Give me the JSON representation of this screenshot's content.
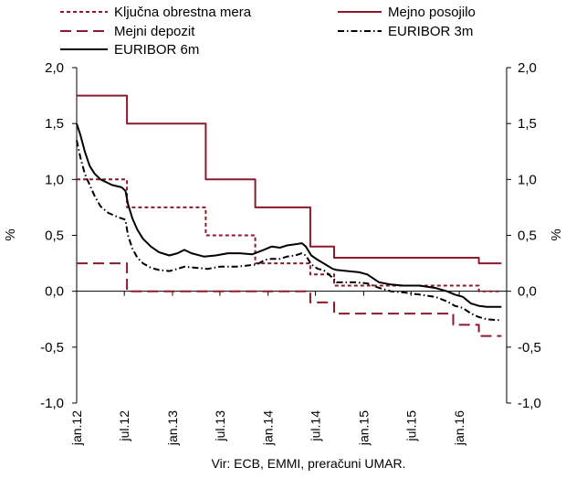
{
  "source_note": "Vir: ECB, EMMI, preračuni UMAR.",
  "chart_data": {
    "type": "line",
    "title": "",
    "ylabel_left": "%",
    "ylabel_right": "%",
    "ylim": [
      -1.0,
      2.0
    ],
    "yticks": [
      -1.0,
      -0.5,
      0.0,
      0.5,
      1.0,
      1.5,
      2.0
    ],
    "ytick_labels": [
      "-1,0",
      "-0,5",
      "0,0",
      "0,5",
      "1,0",
      "1,5",
      "2,0"
    ],
    "xlim": [
      "2012-01-01",
      "2016-06-30"
    ],
    "xticks": [
      {
        "label": "jan.12",
        "date": "2012-01-01"
      },
      {
        "label": "jul.12",
        "date": "2012-07-01"
      },
      {
        "label": "jan.13",
        "date": "2013-01-01"
      },
      {
        "label": "jul.13",
        "date": "2013-07-01"
      },
      {
        "label": "jan.14",
        "date": "2014-01-01"
      },
      {
        "label": "jul.14",
        "date": "2014-07-01"
      },
      {
        "label": "jan.15",
        "date": "2015-01-01"
      },
      {
        "label": "jul.15",
        "date": "2015-07-01"
      },
      {
        "label": "jan.16",
        "date": "2016-01-01"
      }
    ],
    "grid": false,
    "legend_position": "top",
    "series": [
      {
        "name": "Ključna obrestna mera",
        "color": "#8b1a2b",
        "dash": "4,3",
        "step": true,
        "points": [
          [
            "2012-01-01",
            1.0
          ],
          [
            "2012-07-11",
            0.75
          ],
          [
            "2013-05-08",
            0.5
          ],
          [
            "2013-11-13",
            0.25
          ],
          [
            "2014-06-11",
            0.15
          ],
          [
            "2014-09-10",
            0.05
          ],
          [
            "2016-03-16",
            0.0
          ],
          [
            "2016-06-10",
            0.0
          ]
        ]
      },
      {
        "name": "Mejno posojilo",
        "color": "#8b1a2b",
        "dash": "",
        "step": true,
        "points": [
          [
            "2012-01-01",
            1.75
          ],
          [
            "2012-07-11",
            1.5
          ],
          [
            "2013-05-08",
            1.0
          ],
          [
            "2013-11-13",
            0.75
          ],
          [
            "2014-06-11",
            0.4
          ],
          [
            "2014-09-10",
            0.3
          ],
          [
            "2016-03-16",
            0.25
          ],
          [
            "2016-06-10",
            0.25
          ]
        ]
      },
      {
        "name": "Mejni depozit",
        "color": "#8b1a2b",
        "dash": "12,6",
        "step": true,
        "points": [
          [
            "2012-01-01",
            0.25
          ],
          [
            "2012-07-11",
            0.0
          ],
          [
            "2014-06-11",
            -0.1
          ],
          [
            "2014-09-10",
            -0.2
          ],
          [
            "2015-12-09",
            -0.3
          ],
          [
            "2016-03-16",
            -0.4
          ],
          [
            "2016-06-10",
            -0.4
          ]
        ]
      },
      {
        "name": "EURIBOR 3m",
        "color": "#000000",
        "dash": "7,3,1.5,3",
        "step": false,
        "points": [
          [
            "2012-01-01",
            1.35
          ],
          [
            "2012-01-15",
            1.2
          ],
          [
            "2012-02-01",
            1.05
          ],
          [
            "2012-02-20",
            0.95
          ],
          [
            "2012-03-10",
            0.85
          ],
          [
            "2012-04-01",
            0.76
          ],
          [
            "2012-05-01",
            0.7
          ],
          [
            "2012-06-10",
            0.66
          ],
          [
            "2012-07-05",
            0.64
          ],
          [
            "2012-07-15",
            0.5
          ],
          [
            "2012-08-01",
            0.38
          ],
          [
            "2012-08-20",
            0.3
          ],
          [
            "2012-09-10",
            0.25
          ],
          [
            "2012-10-10",
            0.21
          ],
          [
            "2012-11-10",
            0.19
          ],
          [
            "2012-12-20",
            0.18
          ],
          [
            "2013-01-20",
            0.2
          ],
          [
            "2013-02-15",
            0.22
          ],
          [
            "2013-04-01",
            0.21
          ],
          [
            "2013-05-15",
            0.2
          ],
          [
            "2013-07-01",
            0.22
          ],
          [
            "2013-09-01",
            0.22
          ],
          [
            "2013-10-15",
            0.23
          ],
          [
            "2013-11-20",
            0.24
          ],
          [
            "2013-12-20",
            0.28
          ],
          [
            "2014-01-15",
            0.29
          ],
          [
            "2014-02-15",
            0.29
          ],
          [
            "2014-03-15",
            0.31
          ],
          [
            "2014-04-15",
            0.32
          ],
          [
            "2014-05-10",
            0.34
          ],
          [
            "2014-05-25",
            0.32
          ],
          [
            "2014-06-15",
            0.24
          ],
          [
            "2014-07-10",
            0.2
          ],
          [
            "2014-08-01",
            0.19
          ],
          [
            "2014-09-05",
            0.12
          ],
          [
            "2014-09-20",
            0.08
          ],
          [
            "2014-10-20",
            0.08
          ],
          [
            "2014-12-01",
            0.08
          ],
          [
            "2015-01-15",
            0.07
          ],
          [
            "2015-03-01",
            0.03
          ],
          [
            "2015-04-15",
            0.0
          ],
          [
            "2015-06-01",
            -0.01
          ],
          [
            "2015-08-01",
            -0.03
          ],
          [
            "2015-10-01",
            -0.05
          ],
          [
            "2015-11-15",
            -0.09
          ],
          [
            "2015-12-15",
            -0.13
          ],
          [
            "2016-01-15",
            -0.15
          ],
          [
            "2016-02-15",
            -0.2
          ],
          [
            "2016-03-15",
            -0.23
          ],
          [
            "2016-04-15",
            -0.25
          ],
          [
            "2016-06-10",
            -0.26
          ]
        ]
      },
      {
        "name": "EURIBOR 6m",
        "color": "#000000",
        "dash": "",
        "step": false,
        "points": [
          [
            "2012-01-01",
            1.5
          ],
          [
            "2012-01-15",
            1.4
          ],
          [
            "2012-02-01",
            1.25
          ],
          [
            "2012-02-20",
            1.12
          ],
          [
            "2012-03-10",
            1.05
          ],
          [
            "2012-04-01",
            1.0
          ],
          [
            "2012-05-15",
            0.95
          ],
          [
            "2012-06-20",
            0.93
          ],
          [
            "2012-07-05",
            0.9
          ],
          [
            "2012-07-15",
            0.78
          ],
          [
            "2012-08-01",
            0.65
          ],
          [
            "2012-08-20",
            0.55
          ],
          [
            "2012-09-10",
            0.47
          ],
          [
            "2012-10-10",
            0.4
          ],
          [
            "2012-11-10",
            0.35
          ],
          [
            "2012-12-20",
            0.32
          ],
          [
            "2013-01-20",
            0.34
          ],
          [
            "2013-02-15",
            0.37
          ],
          [
            "2013-03-15",
            0.34
          ],
          [
            "2013-05-01",
            0.31
          ],
          [
            "2013-06-15",
            0.32
          ],
          [
            "2013-08-01",
            0.34
          ],
          [
            "2013-09-15",
            0.34
          ],
          [
            "2013-11-01",
            0.33
          ],
          [
            "2013-12-15",
            0.37
          ],
          [
            "2014-01-15",
            0.4
          ],
          [
            "2014-02-15",
            0.39
          ],
          [
            "2014-03-15",
            0.41
          ],
          [
            "2014-04-15",
            0.42
          ],
          [
            "2014-05-10",
            0.43
          ],
          [
            "2014-05-25",
            0.4
          ],
          [
            "2014-06-15",
            0.32
          ],
          [
            "2014-07-10",
            0.28
          ],
          [
            "2014-08-01",
            0.25
          ],
          [
            "2014-09-05",
            0.2
          ],
          [
            "2014-09-20",
            0.19
          ],
          [
            "2014-11-01",
            0.18
          ],
          [
            "2014-12-15",
            0.17
          ],
          [
            "2015-01-15",
            0.15
          ],
          [
            "2015-03-01",
            0.08
          ],
          [
            "2015-04-15",
            0.06
          ],
          [
            "2015-06-01",
            0.05
          ],
          [
            "2015-08-01",
            0.05
          ],
          [
            "2015-10-01",
            0.03
          ],
          [
            "2015-11-15",
            0.0
          ],
          [
            "2015-12-15",
            -0.03
          ],
          [
            "2016-01-15",
            -0.05
          ],
          [
            "2016-02-15",
            -0.11
          ],
          [
            "2016-03-15",
            -0.13
          ],
          [
            "2016-04-15",
            -0.14
          ],
          [
            "2016-06-10",
            -0.14
          ]
        ]
      }
    ]
  }
}
